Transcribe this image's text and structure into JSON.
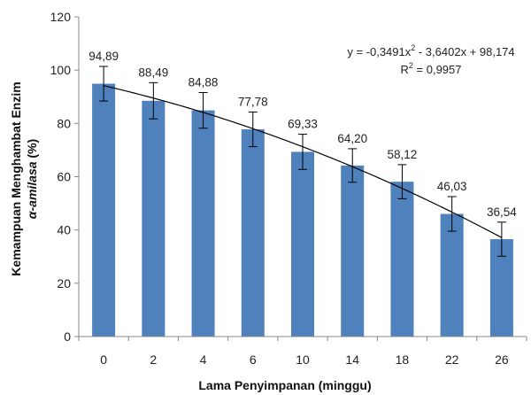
{
  "chart_data": {
    "type": "bar",
    "categories": [
      "0",
      "2",
      "4",
      "6",
      "10",
      "14",
      "18",
      "22",
      "26"
    ],
    "values": [
      94.89,
      88.49,
      84.88,
      77.78,
      69.33,
      64.2,
      58.12,
      46.03,
      36.54
    ],
    "value_labels": [
      "94,89",
      "88,49",
      "84,88",
      "77,78",
      "69,33",
      "64,20",
      "58,12",
      "46,03",
      "36,54"
    ],
    "error": [
      6.5,
      6.8,
      6.7,
      6.5,
      6.6,
      6.3,
      6.4,
      6.5,
      6.4
    ],
    "xlabel": "Lama Penyimpanan (minggu)",
    "ylabel_line1": "Kemampuan Menghambat Enzim",
    "ylabel_line2_italic": "α-amilasa",
    "ylabel_line2_rest": " (%)",
    "ylim": [
      0,
      120
    ],
    "yticks": [
      0,
      20,
      40,
      60,
      80,
      100,
      120
    ],
    "grid": false,
    "bar_color": "#4F81BD",
    "trendline": {
      "type": "polynomial",
      "equation_prefix": "y = -0,3491x",
      "equation_sup": "2",
      "equation_suffix": " - 3,6402x + 98,174",
      "r2_prefix": "R",
      "r2_sup": "2",
      "r2_suffix": " = 0,9957",
      "a": -0.3491,
      "b": -3.6402,
      "c": 98.174
    }
  }
}
